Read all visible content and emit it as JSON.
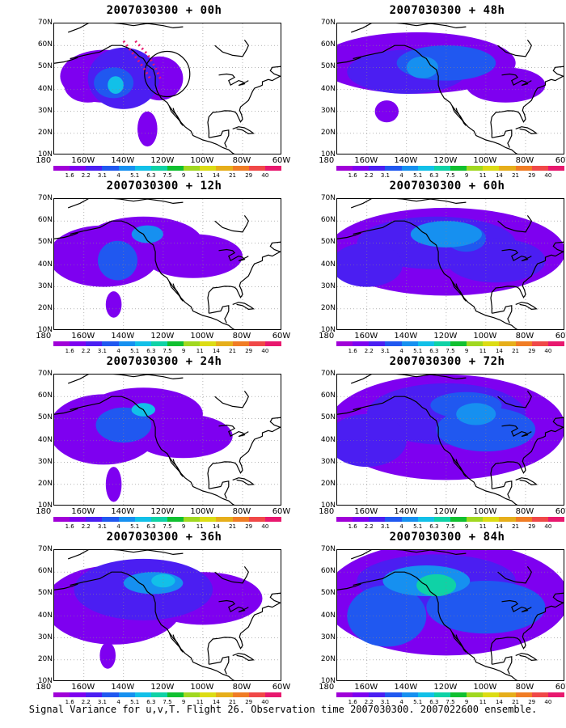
{
  "panels": [
    {
      "title": "2007030300 + 00h"
    },
    {
      "title": "2007030300 + 48h"
    },
    {
      "title": "2007030300 + 12h"
    },
    {
      "title": "2007030300 + 60h"
    },
    {
      "title": "2007030300 + 24h"
    },
    {
      "title": "2007030300 + 72h"
    },
    {
      "title": "2007030300 + 36h"
    },
    {
      "title": "2007030300 + 84h"
    }
  ],
  "lat_labels": [
    "70N",
    "60N",
    "50N",
    "40N",
    "30N",
    "20N",
    "10N"
  ],
  "lon_labels": [
    "180",
    "160W",
    "140W",
    "120W",
    "100W",
    "80W",
    "60W"
  ],
  "colorbar": {
    "labels": [
      "1.6",
      "2.2",
      "3.1",
      "4",
      "5.1",
      "6.3",
      "7.5",
      "9",
      "11",
      "14",
      "21",
      "29",
      "40"
    ],
    "colors": [
      "#a000d8",
      "#7e00f0",
      "#4b1ef2",
      "#2058f0",
      "#1690f0",
      "#12c0e8",
      "#0fd2a6",
      "#10c030",
      "#a0d820",
      "#dcdc14",
      "#e6ae1a",
      "#f07c24",
      "#f04848",
      "#e8186e"
    ]
  },
  "caption": "Signal Variance for u,v,T. Flight 26. Observation time 2007030300. 2007022600 ensemble."
}
